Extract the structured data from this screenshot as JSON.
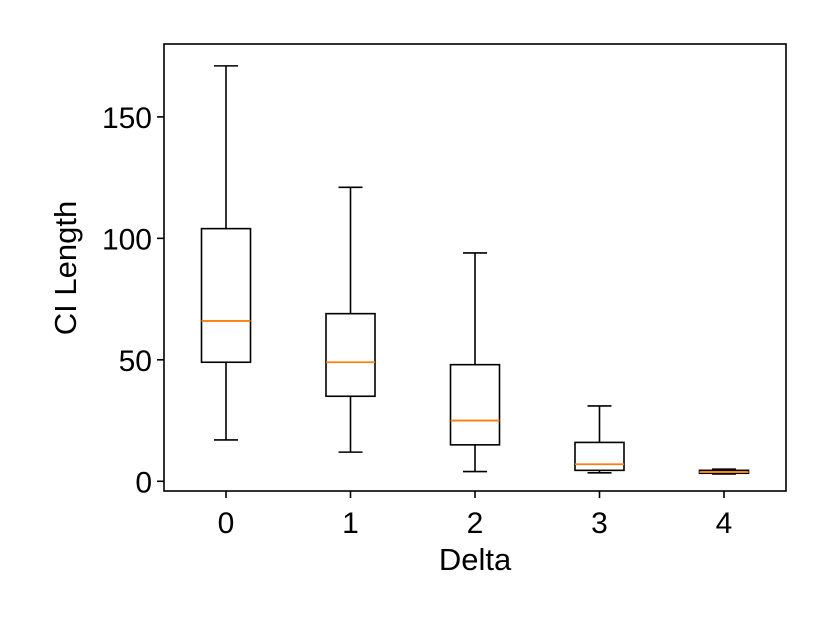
{
  "chart_data": {
    "type": "box",
    "title": "",
    "xlabel": "Delta",
    "ylabel": "CI Length",
    "ylim": [
      -4,
      180
    ],
    "yticks": [
      0,
      50,
      100,
      150
    ],
    "categories": [
      "0",
      "1",
      "2",
      "3",
      "4"
    ],
    "boxes": [
      {
        "category": "0",
        "whisker_low": 17,
        "q1": 49,
        "median": 66,
        "q3": 104,
        "whisker_high": 171
      },
      {
        "category": "1",
        "whisker_low": 12,
        "q1": 35,
        "median": 49,
        "q3": 69,
        "whisker_high": 121
      },
      {
        "category": "2",
        "whisker_low": 4,
        "q1": 15,
        "median": 25,
        "q3": 48,
        "whisker_high": 94
      },
      {
        "category": "3",
        "whisker_low": 3.5,
        "q1": 4.5,
        "median": 7,
        "q3": 16,
        "whisker_high": 31
      },
      {
        "category": "4",
        "whisker_low": 3,
        "q1": 3.3,
        "median": 3.8,
        "q3": 4.5,
        "whisker_high": 5
      }
    ],
    "grid": false,
    "legend": "none",
    "colors": {
      "box": "#000000",
      "median": "#ff7f0e"
    }
  }
}
